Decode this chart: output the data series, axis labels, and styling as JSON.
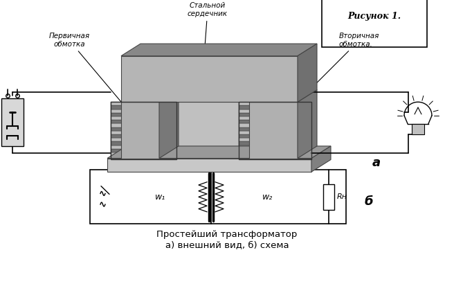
{
  "title_label": "Рисунок 1.",
  "label_core": "Стальной\nсердечник",
  "label_primary": "Первичная\nобмотка",
  "label_secondary": "Вторичная\nобмотка.",
  "label_a": "а",
  "label_b": "б",
  "label_w1": "w₁",
  "label_w2": "w₂",
  "label_rh": "Rн",
  "caption_line1": "Простейший трансформатор",
  "caption_line2": "а) внешний вид, б) схема",
  "bg_color": "#ffffff",
  "fig_width": 6.56,
  "fig_height": 4.36,
  "core_color_top": "#7a7a7a",
  "core_color_front": "#aaaaaa",
  "core_color_side": "#606060",
  "coil_color": "#555555",
  "wire_color": "#333333"
}
